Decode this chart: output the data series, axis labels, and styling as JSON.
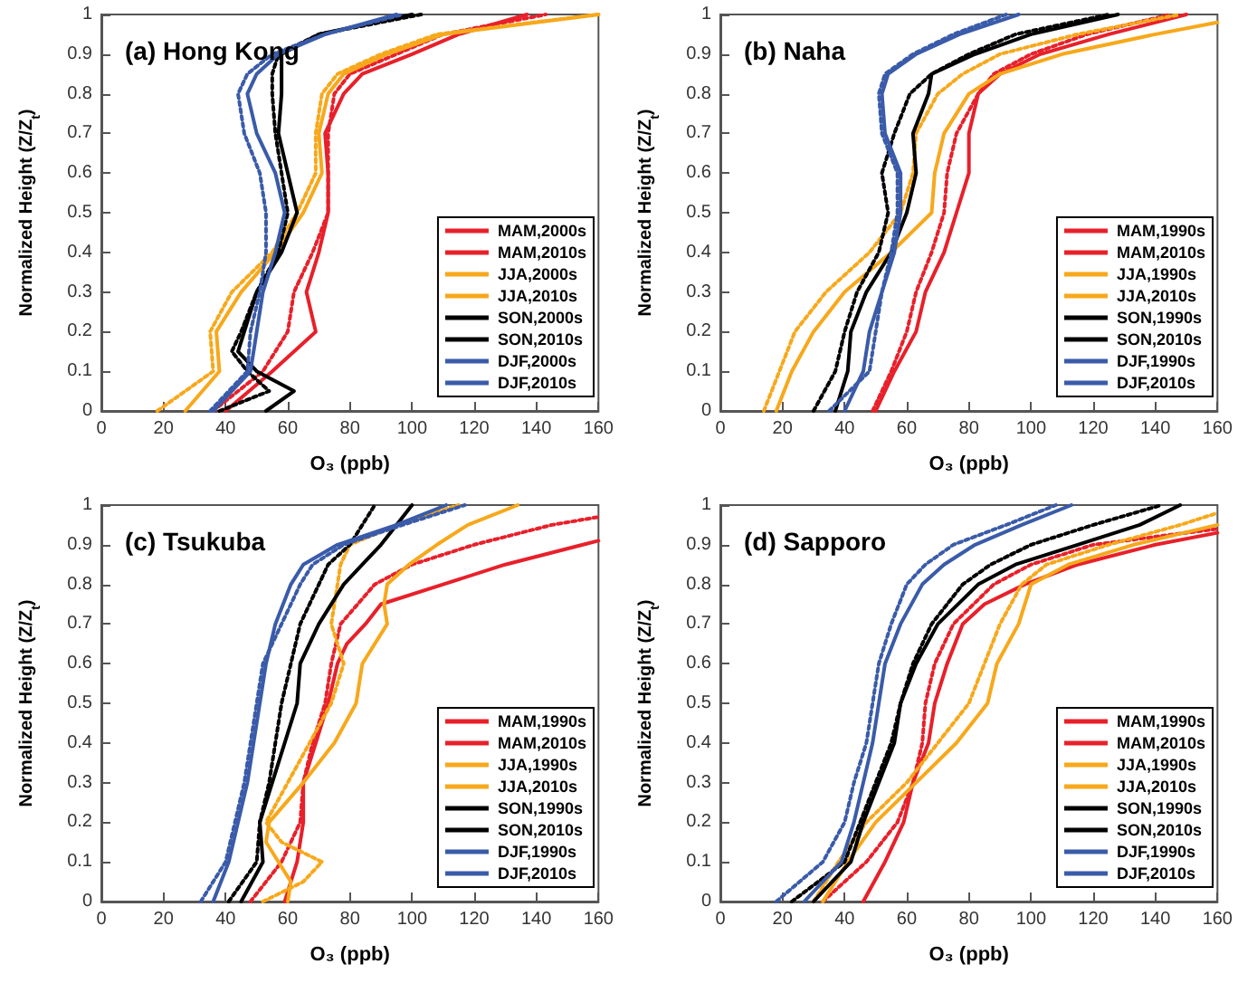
{
  "chart_data": [
    {
      "type": "line",
      "title": "(a) Hong Kong",
      "xlabel": "O₃ (ppb)",
      "ylabel": "Normalized Height (Z/Z$_{t}$)",
      "xlim": [
        0,
        160
      ],
      "xticks": [
        0,
        20,
        40,
        60,
        80,
        100,
        120,
        140,
        160
      ],
      "ylim": [
        0,
        1
      ],
      "yticks": [
        0,
        0.1,
        0.2,
        0.3,
        0.4,
        0.5,
        0.6,
        0.7,
        0.8,
        0.9,
        1
      ],
      "grid": false,
      "legend": "bottom right",
      "marker": "none",
      "series": [
        {
          "name": "MAM,2000s",
          "color": "#e8202a",
          "line_style": "dotted",
          "x": [
            36,
            52,
            60,
            62,
            68,
            73,
            73,
            73,
            75,
            80,
            95,
            110,
            143
          ],
          "values": [
            0,
            0.1,
            0.2,
            0.3,
            0.4,
            0.5,
            0.6,
            0.7,
            0.8,
            0.85,
            0.9,
            0.95,
            1
          ]
        },
        {
          "name": "MAM,2010s",
          "color": "#e8202a",
          "line_style": "solid",
          "x": [
            40,
            55,
            69,
            66,
            70,
            73,
            73,
            72,
            78,
            84,
            100,
            115,
            137
          ],
          "values": [
            0,
            0.1,
            0.2,
            0.3,
            0.4,
            0.5,
            0.6,
            0.7,
            0.8,
            0.85,
            0.9,
            0.95,
            1
          ]
        },
        {
          "name": "JJA,2000s",
          "color": "#f7a81b",
          "line_style": "dotted",
          "x": [
            18,
            36,
            35,
            42,
            55,
            63,
            69,
            69,
            71,
            76,
            90,
            108,
            160
          ],
          "values": [
            0,
            0.1,
            0.2,
            0.3,
            0.4,
            0.5,
            0.6,
            0.7,
            0.8,
            0.85,
            0.9,
            0.95,
            1
          ]
        },
        {
          "name": "JJA,2010s",
          "color": "#f7a81b",
          "line_style": "solid",
          "x": [
            27,
            38,
            37,
            45,
            56,
            65,
            71,
            70,
            73,
            78,
            92,
            110,
            160
          ],
          "values": [
            0,
            0.1,
            0.2,
            0.3,
            0.4,
            0.5,
            0.6,
            0.7,
            0.8,
            0.85,
            0.9,
            0.95,
            1
          ]
        },
        {
          "name": "SON,2000s",
          "color": "#000000",
          "line_style": "dotted",
          "x": [
            38,
            54,
            47,
            42,
            45,
            50,
            57,
            60,
            58,
            56,
            55,
            55,
            57,
            70,
            103
          ],
          "values": [
            0,
            0.05,
            0.1,
            0.15,
            0.2,
            0.3,
            0.4,
            0.5,
            0.6,
            0.7,
            0.8,
            0.85,
            0.9,
            0.95,
            1
          ]
        },
        {
          "name": "SON,2010s",
          "color": "#000000",
          "line_style": "solid",
          "x": [
            53,
            62,
            50,
            44,
            46,
            50,
            58,
            63,
            60,
            57,
            58,
            58,
            70,
            100
          ],
          "values": [
            0,
            0.05,
            0.1,
            0.15,
            0.2,
            0.3,
            0.4,
            0.5,
            0.6,
            0.7,
            0.8,
            0.9,
            0.95,
            1
          ]
        },
        {
          "name": "DJF,2000s",
          "color": "#3a5ba9",
          "line_style": "dotted",
          "x": [
            35,
            47,
            48,
            51,
            53,
            53,
            51,
            46,
            44,
            47,
            55,
            72,
            97
          ],
          "values": [
            0,
            0.1,
            0.2,
            0.3,
            0.4,
            0.5,
            0.6,
            0.7,
            0.8,
            0.85,
            0.9,
            0.95,
            1
          ]
        },
        {
          "name": "DJF,2010s",
          "color": "#3a5ba9",
          "line_style": "solid",
          "x": [
            36,
            48,
            50,
            52,
            56,
            59,
            56,
            50,
            47,
            50,
            57,
            72,
            95
          ],
          "values": [
            0,
            0.1,
            0.2,
            0.3,
            0.4,
            0.5,
            0.6,
            0.7,
            0.8,
            0.85,
            0.9,
            0.95,
            1
          ]
        }
      ]
    },
    {
      "type": "line",
      "title": "(b) Naha",
      "xlabel": "O₃ (ppb)",
      "ylabel": "Normalized Height (Z/Z$_{t}$)",
      "xlim": [
        0,
        160
      ],
      "xticks": [
        0,
        20,
        40,
        60,
        80,
        100,
        120,
        140,
        160
      ],
      "ylim": [
        0,
        1
      ],
      "yticks": [
        0,
        0.1,
        0.2,
        0.3,
        0.4,
        0.5,
        0.6,
        0.7,
        0.8,
        0.9,
        1
      ],
      "grid": false,
      "legend": "bottom right",
      "marker": "none",
      "series": [
        {
          "name": "MAM,1990s",
          "color": "#e8202a",
          "line_style": "dotted",
          "x": [
            49,
            55,
            60,
            63,
            68,
            72,
            73,
            76,
            83,
            88,
            100,
            118,
            145
          ],
          "values": [
            0,
            0.1,
            0.2,
            0.3,
            0.4,
            0.5,
            0.6,
            0.7,
            0.8,
            0.85,
            0.9,
            0.95,
            1
          ]
        },
        {
          "name": "MAM,2010s",
          "color": "#e8202a",
          "line_style": "solid",
          "x": [
            50,
            56,
            63,
            66,
            72,
            76,
            80,
            80,
            83,
            90,
            103,
            125,
            150
          ],
          "values": [
            0,
            0.1,
            0.2,
            0.3,
            0.4,
            0.5,
            0.6,
            0.7,
            0.8,
            0.85,
            0.9,
            0.95,
            1
          ]
        },
        {
          "name": "JJA,1990s",
          "color": "#f7a81b",
          "line_style": "dotted",
          "x": [
            14,
            19,
            24,
            34,
            48,
            58,
            62,
            63,
            70,
            78,
            90,
            115,
            148
          ],
          "values": [
            0,
            0.1,
            0.2,
            0.3,
            0.4,
            0.5,
            0.6,
            0.7,
            0.8,
            0.85,
            0.9,
            0.95,
            1
          ]
        },
        {
          "name": "JJA,2010s",
          "color": "#f7a81b",
          "line_style": "solid",
          "x": [
            18,
            23,
            30,
            40,
            55,
            68,
            69,
            72,
            80,
            90,
            110,
            140,
            160
          ],
          "values": [
            0,
            0.1,
            0.2,
            0.3,
            0.4,
            0.5,
            0.6,
            0.7,
            0.8,
            0.85,
            0.9,
            0.95,
            0.98
          ]
        },
        {
          "name": "SON,1990s",
          "color": "#000000",
          "line_style": "dotted",
          "x": [
            30,
            37,
            40,
            44,
            51,
            54,
            52,
            56,
            61,
            68,
            80,
            95,
            125
          ],
          "values": [
            0,
            0.1,
            0.2,
            0.3,
            0.4,
            0.5,
            0.6,
            0.7,
            0.8,
            0.85,
            0.9,
            0.95,
            1
          ]
        },
        {
          "name": "SON,2010s",
          "color": "#000000",
          "line_style": "solid",
          "x": [
            37,
            41,
            42,
            47,
            55,
            60,
            63,
            62,
            67,
            68,
            82,
            100,
            128
          ],
          "values": [
            0,
            0.1,
            0.2,
            0.3,
            0.4,
            0.5,
            0.6,
            0.7,
            0.8,
            0.85,
            0.9,
            0.95,
            1
          ]
        },
        {
          "name": "DJF,1990s",
          "color": "#3a5ba9",
          "line_style": "dotted",
          "x": [
            35,
            48,
            50,
            52,
            55,
            57,
            57,
            52,
            51,
            53,
            62,
            75,
            92
          ],
          "values": [
            0,
            0.1,
            0.2,
            0.3,
            0.4,
            0.5,
            0.6,
            0.7,
            0.8,
            0.85,
            0.9,
            0.95,
            1
          ]
        },
        {
          "name": "DJF,2010s",
          "color": "#3a5ba9",
          "line_style": "solid",
          "x": [
            40,
            46,
            48,
            52,
            56,
            58,
            58,
            53,
            52,
            54,
            63,
            77,
            96
          ],
          "values": [
            0,
            0.1,
            0.2,
            0.3,
            0.4,
            0.5,
            0.6,
            0.7,
            0.8,
            0.85,
            0.9,
            0.95,
            1
          ]
        }
      ]
    },
    {
      "type": "line",
      "title": "(c) Tsukuba",
      "xlabel": "O₃ (ppb)",
      "ylabel": "Normalized Height (Z/Z$_{t}$)",
      "xlim": [
        0,
        160
      ],
      "xticks": [
        0,
        20,
        40,
        60,
        80,
        100,
        120,
        140,
        160
      ],
      "ylim": [
        0,
        1
      ],
      "yticks": [
        0,
        0.1,
        0.2,
        0.3,
        0.4,
        0.5,
        0.6,
        0.7,
        0.8,
        0.9,
        1
      ],
      "grid": false,
      "legend": "bottom right",
      "marker": "none",
      "series": [
        {
          "name": "MAM,1990s",
          "color": "#e8202a",
          "line_style": "dotted",
          "x": [
            48,
            58,
            64,
            65,
            68,
            72,
            74,
            77,
            88,
            100,
            120,
            145,
            160
          ],
          "values": [
            0,
            0.1,
            0.2,
            0.3,
            0.4,
            0.5,
            0.6,
            0.7,
            0.8,
            0.85,
            0.9,
            0.95,
            0.97
          ]
        },
        {
          "name": "MAM,2010s",
          "color": "#e8202a",
          "line_style": "solid",
          "x": [
            59,
            63,
            65,
            65,
            69,
            73,
            76,
            79,
            85,
            90,
            110,
            130,
            155,
            160
          ],
          "values": [
            0,
            0.1,
            0.2,
            0.3,
            0.4,
            0.5,
            0.6,
            0.65,
            0.7,
            0.75,
            0.8,
            0.85,
            0.9,
            0.91
          ]
        },
        {
          "name": "JJA,1990s",
          "color": "#f7a81b",
          "line_style": "dotted",
          "x": [
            52,
            65,
            71,
            58,
            53,
            60,
            67,
            74,
            78,
            74,
            76,
            77,
            80,
            95,
            115
          ],
          "values": [
            0,
            0.05,
            0.1,
            0.15,
            0.2,
            0.3,
            0.4,
            0.5,
            0.6,
            0.7,
            0.8,
            0.85,
            0.9,
            0.95,
            1
          ]
        },
        {
          "name": "JJA,2010s",
          "color": "#f7a81b",
          "line_style": "solid",
          "x": [
            60,
            61,
            57,
            53,
            54,
            65,
            75,
            82,
            84,
            92,
            91,
            92,
            99,
            108,
            118,
            134
          ],
          "values": [
            0,
            0.05,
            0.1,
            0.15,
            0.2,
            0.3,
            0.4,
            0.5,
            0.6,
            0.7,
            0.75,
            0.8,
            0.85,
            0.9,
            0.95,
            1
          ]
        },
        {
          "name": "SON,1990s",
          "color": "#000000",
          "line_style": "dotted",
          "x": [
            41,
            50,
            51,
            54,
            56,
            58,
            61,
            64,
            70,
            73,
            80,
            84,
            88
          ],
          "values": [
            0,
            0.1,
            0.2,
            0.3,
            0.4,
            0.5,
            0.6,
            0.7,
            0.8,
            0.85,
            0.9,
            0.95,
            1
          ]
        },
        {
          "name": "SON,2010s",
          "color": "#000000",
          "line_style": "solid",
          "x": [
            45,
            52,
            51,
            55,
            59,
            63,
            64,
            70,
            78,
            84,
            90,
            95,
            100
          ],
          "values": [
            0,
            0.1,
            0.2,
            0.3,
            0.4,
            0.5,
            0.6,
            0.7,
            0.8,
            0.85,
            0.9,
            0.95,
            1
          ]
        },
        {
          "name": "DJF,1990s",
          "color": "#3a5ba9",
          "line_style": "dotted",
          "x": [
            32,
            40,
            43,
            46,
            48,
            50,
            52,
            58,
            64,
            68,
            78,
            97,
            117
          ],
          "values": [
            0,
            0.1,
            0.2,
            0.3,
            0.4,
            0.5,
            0.6,
            0.7,
            0.8,
            0.85,
            0.9,
            0.95,
            1
          ]
        },
        {
          "name": "DJF,2010s",
          "color": "#3a5ba9",
          "line_style": "solid",
          "x": [
            36,
            41,
            44,
            47,
            49,
            51,
            53,
            56,
            61,
            65,
            76,
            95,
            111
          ],
          "values": [
            0,
            0.1,
            0.2,
            0.3,
            0.4,
            0.5,
            0.6,
            0.7,
            0.8,
            0.85,
            0.9,
            0.95,
            1
          ]
        }
      ]
    },
    {
      "type": "line",
      "title": "(d) Sapporo",
      "xlabel": "O₃ (ppb)",
      "ylabel": "Normalized Height (Z/Z$_{t}$)",
      "xlim": [
        0,
        160
      ],
      "xticks": [
        0,
        20,
        40,
        60,
        80,
        100,
        120,
        140,
        160
      ],
      "ylim": [
        0,
        1
      ],
      "yticks": [
        0,
        0.1,
        0.2,
        0.3,
        0.4,
        0.5,
        0.6,
        0.7,
        0.8,
        0.9,
        1
      ],
      "grid": false,
      "legend": "bottom right",
      "marker": "none",
      "series": [
        {
          "name": "MAM,1990s",
          "color": "#e8202a",
          "line_style": "dotted",
          "x": [
            33,
            47,
            57,
            62,
            65,
            66,
            69,
            75,
            88,
            100,
            120,
            160
          ],
          "values": [
            0,
            0.1,
            0.2,
            0.3,
            0.4,
            0.5,
            0.6,
            0.7,
            0.8,
            0.85,
            0.9,
            0.94
          ]
        },
        {
          "name": "MAM,2010s",
          "color": "#e8202a",
          "line_style": "solid",
          "x": [
            46,
            53,
            59,
            62,
            67,
            69,
            73,
            78,
            85,
            98,
            115,
            140,
            160
          ],
          "values": [
            0,
            0.1,
            0.2,
            0.3,
            0.4,
            0.5,
            0.6,
            0.7,
            0.75,
            0.8,
            0.85,
            0.9,
            0.93
          ]
        },
        {
          "name": "JJA,1990s",
          "color": "#f7a81b",
          "line_style": "dotted",
          "x": [
            30,
            38,
            47,
            60,
            70,
            80,
            85,
            90,
            97,
            105,
            125,
            148,
            160
          ],
          "values": [
            0,
            0.1,
            0.2,
            0.3,
            0.4,
            0.5,
            0.6,
            0.7,
            0.8,
            0.85,
            0.9,
            0.95,
            0.98
          ]
        },
        {
          "name": "JJA,2010s",
          "color": "#f7a81b",
          "line_style": "solid",
          "x": [
            33,
            41,
            50,
            63,
            76,
            86,
            89,
            96,
            100,
            112,
            133,
            160
          ],
          "values": [
            0,
            0.1,
            0.2,
            0.3,
            0.4,
            0.5,
            0.6,
            0.7,
            0.8,
            0.85,
            0.9,
            0.95
          ]
        },
        {
          "name": "SON,1990s",
          "color": "#000000",
          "line_style": "dotted",
          "x": [
            23,
            40,
            45,
            50,
            55,
            58,
            62,
            68,
            78,
            87,
            100,
            120,
            142
          ],
          "values": [
            0,
            0.1,
            0.2,
            0.3,
            0.4,
            0.5,
            0.6,
            0.7,
            0.8,
            0.85,
            0.9,
            0.95,
            1
          ]
        },
        {
          "name": "SON,2010s",
          "color": "#000000",
          "line_style": "solid",
          "x": [
            30,
            42,
            46,
            51,
            56,
            58,
            63,
            70,
            83,
            95,
            115,
            135,
            148
          ],
          "values": [
            0,
            0.1,
            0.2,
            0.3,
            0.4,
            0.5,
            0.6,
            0.7,
            0.8,
            0.85,
            0.9,
            0.95,
            1
          ]
        },
        {
          "name": "DJF,1990s",
          "color": "#3a5ba9",
          "line_style": "dotted",
          "x": [
            18,
            33,
            40,
            43,
            47,
            49,
            51,
            55,
            60,
            66,
            75,
            92,
            108
          ],
          "values": [
            0,
            0.1,
            0.2,
            0.3,
            0.4,
            0.5,
            0.6,
            0.7,
            0.8,
            0.85,
            0.9,
            0.95,
            1
          ]
        },
        {
          "name": "DJF,2010s",
          "color": "#3a5ba9",
          "line_style": "solid",
          "x": [
            27,
            39,
            43,
            46,
            49,
            51,
            53,
            58,
            65,
            72,
            82,
            97,
            113
          ],
          "values": [
            0,
            0.1,
            0.2,
            0.3,
            0.4,
            0.5,
            0.6,
            0.7,
            0.8,
            0.85,
            0.9,
            0.95,
            1
          ]
        }
      ]
    }
  ]
}
